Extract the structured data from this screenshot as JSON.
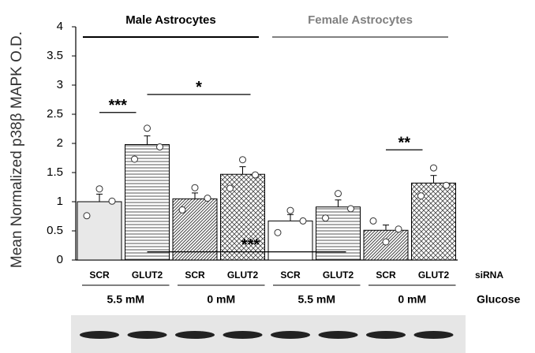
{
  "chart_data": {
    "type": "bar",
    "ylabel": "Mean Normalized p38β MAPK O.D.",
    "groups": [
      "Male Astrocytes",
      "Female Astrocytes"
    ],
    "group_colors": [
      "#000000",
      "#808080"
    ],
    "categories": [
      "SCR",
      "GLUT2",
      "SCR",
      "GLUT2",
      "SCR",
      "GLUT2",
      "SCR",
      "GLUT2"
    ],
    "category_row_label": "siRNA",
    "conditions": [
      "5.5 mM",
      "0 mM",
      "5.5 mM",
      "0 mM"
    ],
    "condition_row_label": "Glucose",
    "values": [
      1.0,
      1.98,
      1.05,
      1.47,
      0.67,
      0.91,
      0.51,
      1.32
    ],
    "errors": [
      0.13,
      0.15,
      0.1,
      0.13,
      0.11,
      0.12,
      0.09,
      0.13
    ],
    "points": [
      [
        0.76,
        1.22,
        1.01
      ],
      [
        1.73,
        2.26,
        1.94
      ],
      [
        0.86,
        1.24,
        1.06
      ],
      [
        1.23,
        1.72,
        1.46
      ],
      [
        0.47,
        0.85,
        0.67
      ],
      [
        0.72,
        1.14,
        0.88
      ],
      [
        0.67,
        0.31,
        0.53
      ],
      [
        1.1,
        1.58,
        1.28
      ]
    ],
    "annotations": [
      {
        "text": "***",
        "from": 0,
        "to": 1,
        "y": 2.53
      },
      {
        "text": "*",
        "from": 1,
        "to": 3,
        "y": 2.84
      },
      {
        "text": "**",
        "from": 6,
        "to": 7,
        "y": 1.89
      },
      {
        "text": "***",
        "from": 1,
        "to": 5,
        "y": 0.14
      }
    ],
    "ylim": [
      0,
      4
    ],
    "yticks": [
      0,
      0.5,
      1,
      1.5,
      2,
      2.5,
      3,
      3.5,
      4
    ]
  }
}
